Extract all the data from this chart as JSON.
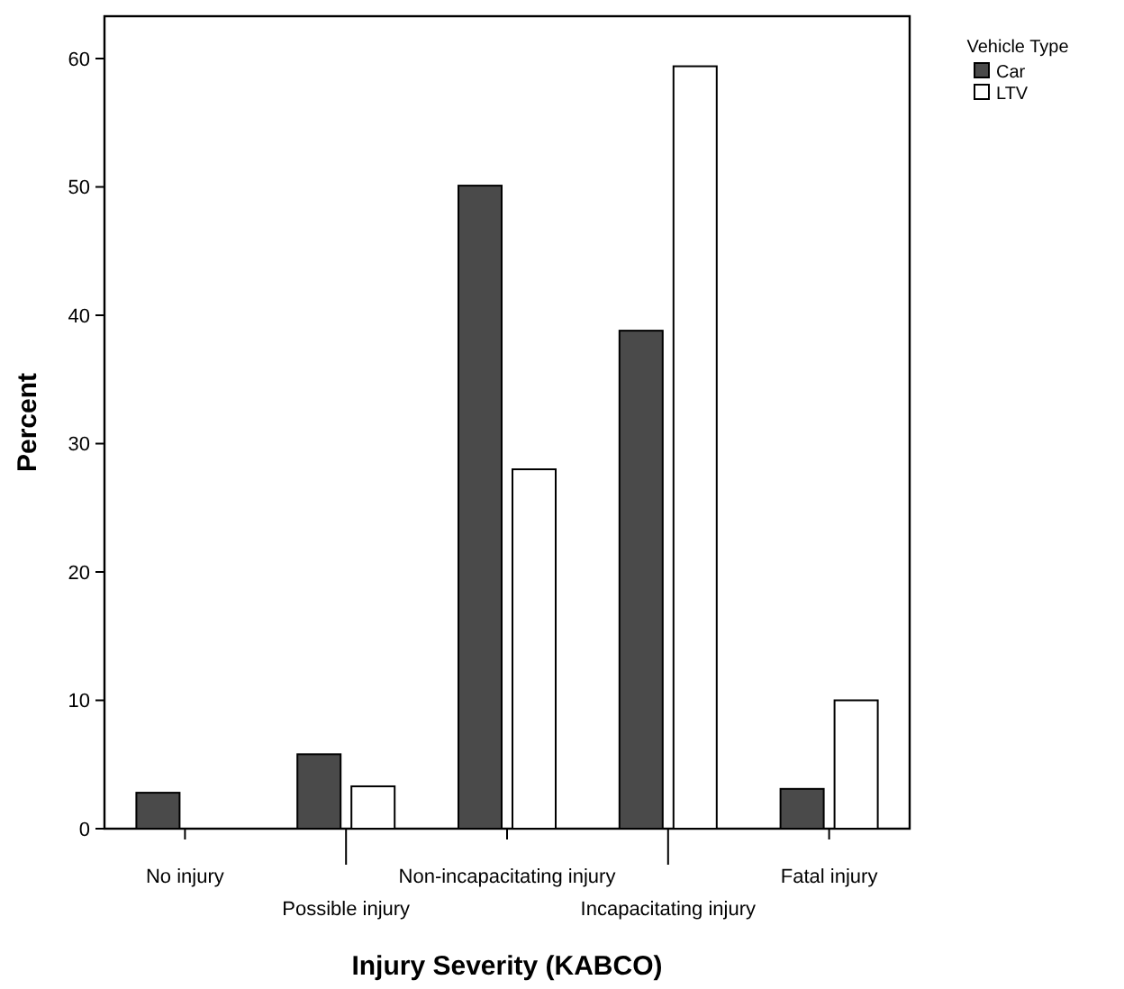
{
  "chart_data": {
    "type": "bar",
    "xlabel": "Injury Severity (KABCO)",
    "ylabel": "Percent",
    "legend_title": "Vehicle Type",
    "legend": "top right",
    "grid": false,
    "categories": [
      "No injury",
      "Possible injury",
      "Non-incapacitating injury",
      "Incapacitating injury",
      "Fatal injury"
    ],
    "ylim": [
      0,
      63.3
    ],
    "yticks": [
      0,
      10,
      20,
      30,
      40,
      50,
      60
    ],
    "series": [
      {
        "name": "Car",
        "color": "#4a4a4a",
        "values": [
          2.8,
          5.8,
          50.1,
          38.8,
          3.1
        ]
      },
      {
        "name": "LTV",
        "color": "#ffffff",
        "values": [
          0,
          3.3,
          28.0,
          59.4,
          10.0
        ]
      }
    ]
  }
}
